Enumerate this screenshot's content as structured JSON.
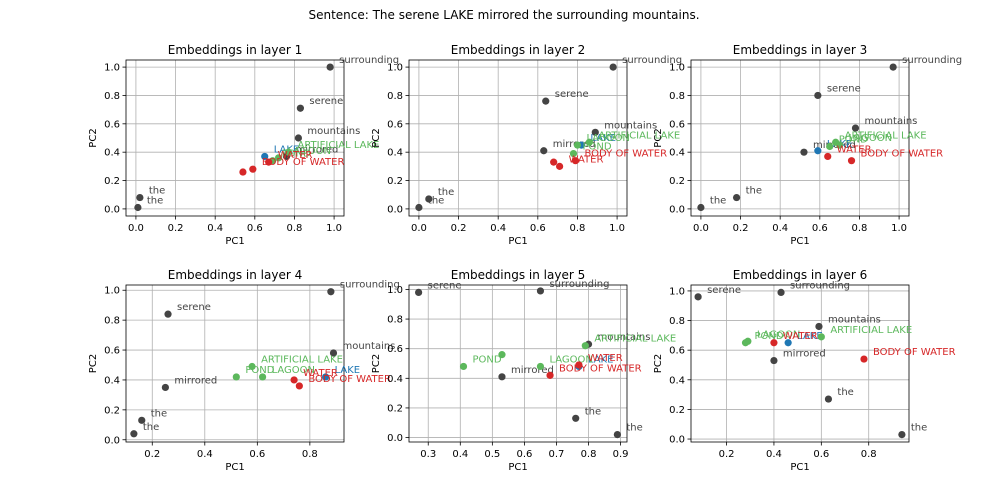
{
  "figure": {
    "suptitle": "Sentence: The serene LAKE mirrored the surrounding mountains."
  },
  "colors": {
    "context": "#444444",
    "target": "#1f77b4",
    "related": "#5cb85c",
    "distractor": "#d62728",
    "grid": "#b0b0b0"
  },
  "chart_data": [
    {
      "type": "scatter",
      "title": "Embeddings in layer 1",
      "xlabel": "PC1",
      "ylabel": "PC2",
      "xlim": [
        -0.05,
        1.05
      ],
      "ylim": [
        -0.05,
        1.05
      ],
      "grid": true,
      "xticks": [
        0.0,
        0.2,
        0.4,
        0.6,
        0.8,
        1.0
      ],
      "yticks": [
        0.0,
        0.2,
        0.4,
        0.6,
        0.8,
        1.0
      ],
      "xtick_labels": [
        "0.0",
        "0.2",
        "0.4",
        "0.6",
        "0.8",
        "1.0"
      ],
      "ytick_labels": [
        "0.0",
        "0.2",
        "0.4",
        "0.6",
        "0.8",
        "1.0"
      ],
      "points": [
        {
          "label": "the",
          "x": 0.02,
          "y": 0.08,
          "group": "context"
        },
        {
          "label": "the",
          "x": 0.01,
          "y": 0.01,
          "group": "context"
        },
        {
          "label": "serene",
          "x": 0.83,
          "y": 0.71,
          "group": "context"
        },
        {
          "label": "surrounding",
          "x": 0.98,
          "y": 1.0,
          "group": "context"
        },
        {
          "label": "mountains",
          "x": 0.82,
          "y": 0.5,
          "group": "context"
        },
        {
          "label": "mirrored",
          "x": 0.76,
          "y": 0.37,
          "group": "context"
        },
        {
          "label": "LAKE",
          "x": 0.65,
          "y": 0.37,
          "group": "target"
        },
        {
          "label": "ARTIFICIAL LAKE",
          "x": 0.77,
          "y": 0.4,
          "group": "related"
        },
        {
          "label": "POND",
          "x": 0.69,
          "y": 0.34,
          "group": "related"
        },
        {
          "label": "LAGOON",
          "x": 0.72,
          "y": 0.36,
          "group": "related"
        },
        {
          "label": "WATER",
          "x": 0.67,
          "y": 0.33,
          "group": "distractor"
        },
        {
          "label": "BODY OF WATER",
          "x": 0.59,
          "y": 0.28,
          "group": "distractor"
        },
        {
          "label": "",
          "x": 0.54,
          "y": 0.26,
          "group": "distractor"
        }
      ]
    },
    {
      "type": "scatter",
      "title": "Embeddings in layer 2",
      "xlabel": "PC1",
      "ylabel": "PC2",
      "xlim": [
        -0.05,
        1.05
      ],
      "ylim": [
        -0.05,
        1.05
      ],
      "grid": true,
      "xticks": [
        0.0,
        0.2,
        0.4,
        0.6,
        0.8,
        1.0
      ],
      "yticks": [
        0.0,
        0.2,
        0.4,
        0.6,
        0.8,
        1.0
      ],
      "xtick_labels": [
        "0.0",
        "0.2",
        "0.4",
        "0.6",
        "0.8",
        "1.0"
      ],
      "ytick_labels": [
        "0.0",
        "0.2",
        "0.4",
        "0.6",
        "0.8",
        "1.0"
      ],
      "points": [
        {
          "label": "the",
          "x": 0.05,
          "y": 0.07,
          "group": "context"
        },
        {
          "label": "the",
          "x": 0.0,
          "y": 0.01,
          "group": "context"
        },
        {
          "label": "serene",
          "x": 0.64,
          "y": 0.76,
          "group": "context"
        },
        {
          "label": "surrounding",
          "x": 0.98,
          "y": 1.0,
          "group": "context"
        },
        {
          "label": "mountains",
          "x": 0.89,
          "y": 0.54,
          "group": "context"
        },
        {
          "label": "mirrored",
          "x": 0.63,
          "y": 0.41,
          "group": "context"
        },
        {
          "label": "LAKE",
          "x": 0.82,
          "y": 0.45,
          "group": "target"
        },
        {
          "label": "ARTIFICIAL LAKE",
          "x": 0.86,
          "y": 0.47,
          "group": "related"
        },
        {
          "label": "POND",
          "x": 0.78,
          "y": 0.39,
          "group": "related"
        },
        {
          "label": "LAGOON",
          "x": 0.8,
          "y": 0.45,
          "group": "related"
        },
        {
          "label": "WATER",
          "x": 0.71,
          "y": 0.3,
          "group": "distractor"
        },
        {
          "label": "BODY OF WATER",
          "x": 0.79,
          "y": 0.34,
          "group": "distractor"
        },
        {
          "label": "",
          "x": 0.68,
          "y": 0.33,
          "group": "distractor"
        }
      ]
    },
    {
      "type": "scatter",
      "title": "Embeddings in layer 3",
      "xlabel": "PC1",
      "ylabel": "PC2",
      "xlim": [
        -0.05,
        1.05
      ],
      "ylim": [
        -0.05,
        1.05
      ],
      "grid": true,
      "xticks": [
        0.0,
        0.2,
        0.4,
        0.6,
        0.8,
        1.0
      ],
      "yticks": [
        0.0,
        0.2,
        0.4,
        0.6,
        0.8,
        1.0
      ],
      "xtick_labels": [
        "0.0",
        "0.2",
        "0.4",
        "0.6",
        "0.8",
        "1.0"
      ],
      "ytick_labels": [
        "0.0",
        "0.2",
        "0.4",
        "0.6",
        "0.8",
        "1.0"
      ],
      "points": [
        {
          "label": "the",
          "x": 0.18,
          "y": 0.08,
          "group": "context"
        },
        {
          "label": "the",
          "x": 0.0,
          "y": 0.01,
          "group": "context"
        },
        {
          "label": "serene",
          "x": 0.59,
          "y": 0.8,
          "group": "context"
        },
        {
          "label": "surrounding",
          "x": 0.97,
          "y": 1.0,
          "group": "context"
        },
        {
          "label": "mountains",
          "x": 0.78,
          "y": 0.57,
          "group": "context"
        },
        {
          "label": "mirrored",
          "x": 0.52,
          "y": 0.4,
          "group": "context"
        },
        {
          "label": "LAKE",
          "x": 0.59,
          "y": 0.41,
          "group": "target"
        },
        {
          "label": "ARTIFICIAL LAKE",
          "x": 0.68,
          "y": 0.47,
          "group": "related"
        },
        {
          "label": "POND",
          "x": 0.65,
          "y": 0.44,
          "group": "related"
        },
        {
          "label": "LAGOON",
          "x": 0.7,
          "y": 0.45,
          "group": "related"
        },
        {
          "label": "WATER",
          "x": 0.64,
          "y": 0.37,
          "group": "distractor"
        },
        {
          "label": "BODY OF WATER",
          "x": 0.76,
          "y": 0.34,
          "group": "distractor"
        }
      ]
    },
    {
      "type": "scatter",
      "title": "Embeddings in layer 4",
      "xlabel": "PC1",
      "ylabel": "PC2",
      "xlim": [
        0.1,
        0.93
      ],
      "ylim": [
        -0.015,
        1.035
      ],
      "grid": true,
      "xticks": [
        0.2,
        0.4,
        0.6,
        0.8
      ],
      "yticks": [
        0.0,
        0.2,
        0.4,
        0.6,
        0.8,
        1.0
      ],
      "xtick_labels": [
        "0.2",
        "0.4",
        "0.6",
        "0.8"
      ],
      "ytick_labels": [
        "0.0",
        "0.2",
        "0.4",
        "0.6",
        "0.8",
        "1.0"
      ],
      "points": [
        {
          "label": "the",
          "x": 0.16,
          "y": 0.13,
          "group": "context"
        },
        {
          "label": "the",
          "x": 0.13,
          "y": 0.04,
          "group": "context"
        },
        {
          "label": "serene",
          "x": 0.26,
          "y": 0.84,
          "group": "context"
        },
        {
          "label": "surrounding",
          "x": 0.88,
          "y": 0.99,
          "group": "context"
        },
        {
          "label": "mountains",
          "x": 0.89,
          "y": 0.58,
          "group": "context"
        },
        {
          "label": "mirrored",
          "x": 0.25,
          "y": 0.35,
          "group": "context"
        },
        {
          "label": "LAKE",
          "x": 0.86,
          "y": 0.42,
          "group": "target"
        },
        {
          "label": "ARTIFICIAL LAKE",
          "x": 0.58,
          "y": 0.49,
          "group": "related"
        },
        {
          "label": "POND",
          "x": 0.52,
          "y": 0.42,
          "group": "related"
        },
        {
          "label": "LAGOON",
          "x": 0.62,
          "y": 0.42,
          "group": "related"
        },
        {
          "label": "WATER",
          "x": 0.74,
          "y": 0.4,
          "group": "distractor"
        },
        {
          "label": "BODY OF WATER",
          "x": 0.76,
          "y": 0.36,
          "group": "distractor"
        }
      ]
    },
    {
      "type": "scatter",
      "title": "Embeddings in layer 5",
      "xlabel": "PC1",
      "ylabel": "PC2",
      "xlim": [
        0.24,
        0.92
      ],
      "ylim": [
        -0.03,
        1.03
      ],
      "grid": true,
      "xticks": [
        0.3,
        0.4,
        0.5,
        0.6,
        0.7,
        0.8,
        0.9
      ],
      "yticks": [
        0.0,
        0.2,
        0.4,
        0.6,
        0.8,
        1.0
      ],
      "xtick_labels": [
        "0.3",
        "0.4",
        "0.5",
        "0.6",
        "0.7",
        "0.8",
        "0.9"
      ],
      "ytick_labels": [
        "0.0",
        "0.2",
        "0.4",
        "0.6",
        "0.8",
        "1.0"
      ],
      "points": [
        {
          "label": "serene",
          "x": 0.27,
          "y": 0.98,
          "group": "context"
        },
        {
          "label": "surrounding",
          "x": 0.65,
          "y": 0.99,
          "group": "context"
        },
        {
          "label": "mountains",
          "x": 0.8,
          "y": 0.63,
          "group": "context"
        },
        {
          "label": "mirrored",
          "x": 0.53,
          "y": 0.41,
          "group": "context"
        },
        {
          "label": "the",
          "x": 0.76,
          "y": 0.13,
          "group": "context"
        },
        {
          "label": "the",
          "x": 0.89,
          "y": 0.02,
          "group": "context"
        },
        {
          "label": "LAKE",
          "x": 0.77,
          "y": 0.48,
          "group": "target"
        },
        {
          "label": "ARTIFICIAL LAKE",
          "x": 0.79,
          "y": 0.62,
          "group": "related"
        },
        {
          "label": "POND",
          "x": 0.41,
          "y": 0.48,
          "group": "related"
        },
        {
          "label": "LAGOON",
          "x": 0.65,
          "y": 0.48,
          "group": "related"
        },
        {
          "label": "",
          "x": 0.53,
          "y": 0.56,
          "group": "related"
        },
        {
          "label": "WATER",
          "x": 0.77,
          "y": 0.49,
          "group": "distractor"
        },
        {
          "label": "BODY OF WATER",
          "x": 0.68,
          "y": 0.42,
          "group": "distractor"
        }
      ]
    },
    {
      "type": "scatter",
      "title": "Embeddings in layer 6",
      "xlabel": "PC1",
      "ylabel": "PC2",
      "xlim": [
        0.05,
        0.97
      ],
      "ylim": [
        -0.02,
        1.04
      ],
      "grid": true,
      "xticks": [
        0.2,
        0.4,
        0.6,
        0.8
      ],
      "yticks": [
        0.0,
        0.2,
        0.4,
        0.6,
        0.8,
        1.0
      ],
      "xtick_labels": [
        "0.2",
        "0.4",
        "0.6",
        "0.8"
      ],
      "ytick_labels": [
        "0.0",
        "0.2",
        "0.4",
        "0.6",
        "0.8",
        "1.0"
      ],
      "points": [
        {
          "label": "serene",
          "x": 0.08,
          "y": 0.96,
          "group": "context"
        },
        {
          "label": "surrounding",
          "x": 0.43,
          "y": 0.99,
          "group": "context"
        },
        {
          "label": "mountains",
          "x": 0.59,
          "y": 0.76,
          "group": "context"
        },
        {
          "label": "mirrored",
          "x": 0.4,
          "y": 0.53,
          "group": "context"
        },
        {
          "label": "the",
          "x": 0.63,
          "y": 0.27,
          "group": "context"
        },
        {
          "label": "the",
          "x": 0.94,
          "y": 0.03,
          "group": "context"
        },
        {
          "label": "LAKE",
          "x": 0.46,
          "y": 0.65,
          "group": "target"
        },
        {
          "label": "ARTIFICIAL LAKE",
          "x": 0.6,
          "y": 0.69,
          "group": "related"
        },
        {
          "label": "POND",
          "x": 0.28,
          "y": 0.65,
          "group": "related"
        },
        {
          "label": "LAGOON",
          "x": 0.29,
          "y": 0.66,
          "group": "related"
        },
        {
          "label": "WATER",
          "x": 0.4,
          "y": 0.65,
          "group": "distractor"
        },
        {
          "label": "BODY OF WATER",
          "x": 0.78,
          "y": 0.54,
          "group": "distractor"
        }
      ]
    }
  ]
}
